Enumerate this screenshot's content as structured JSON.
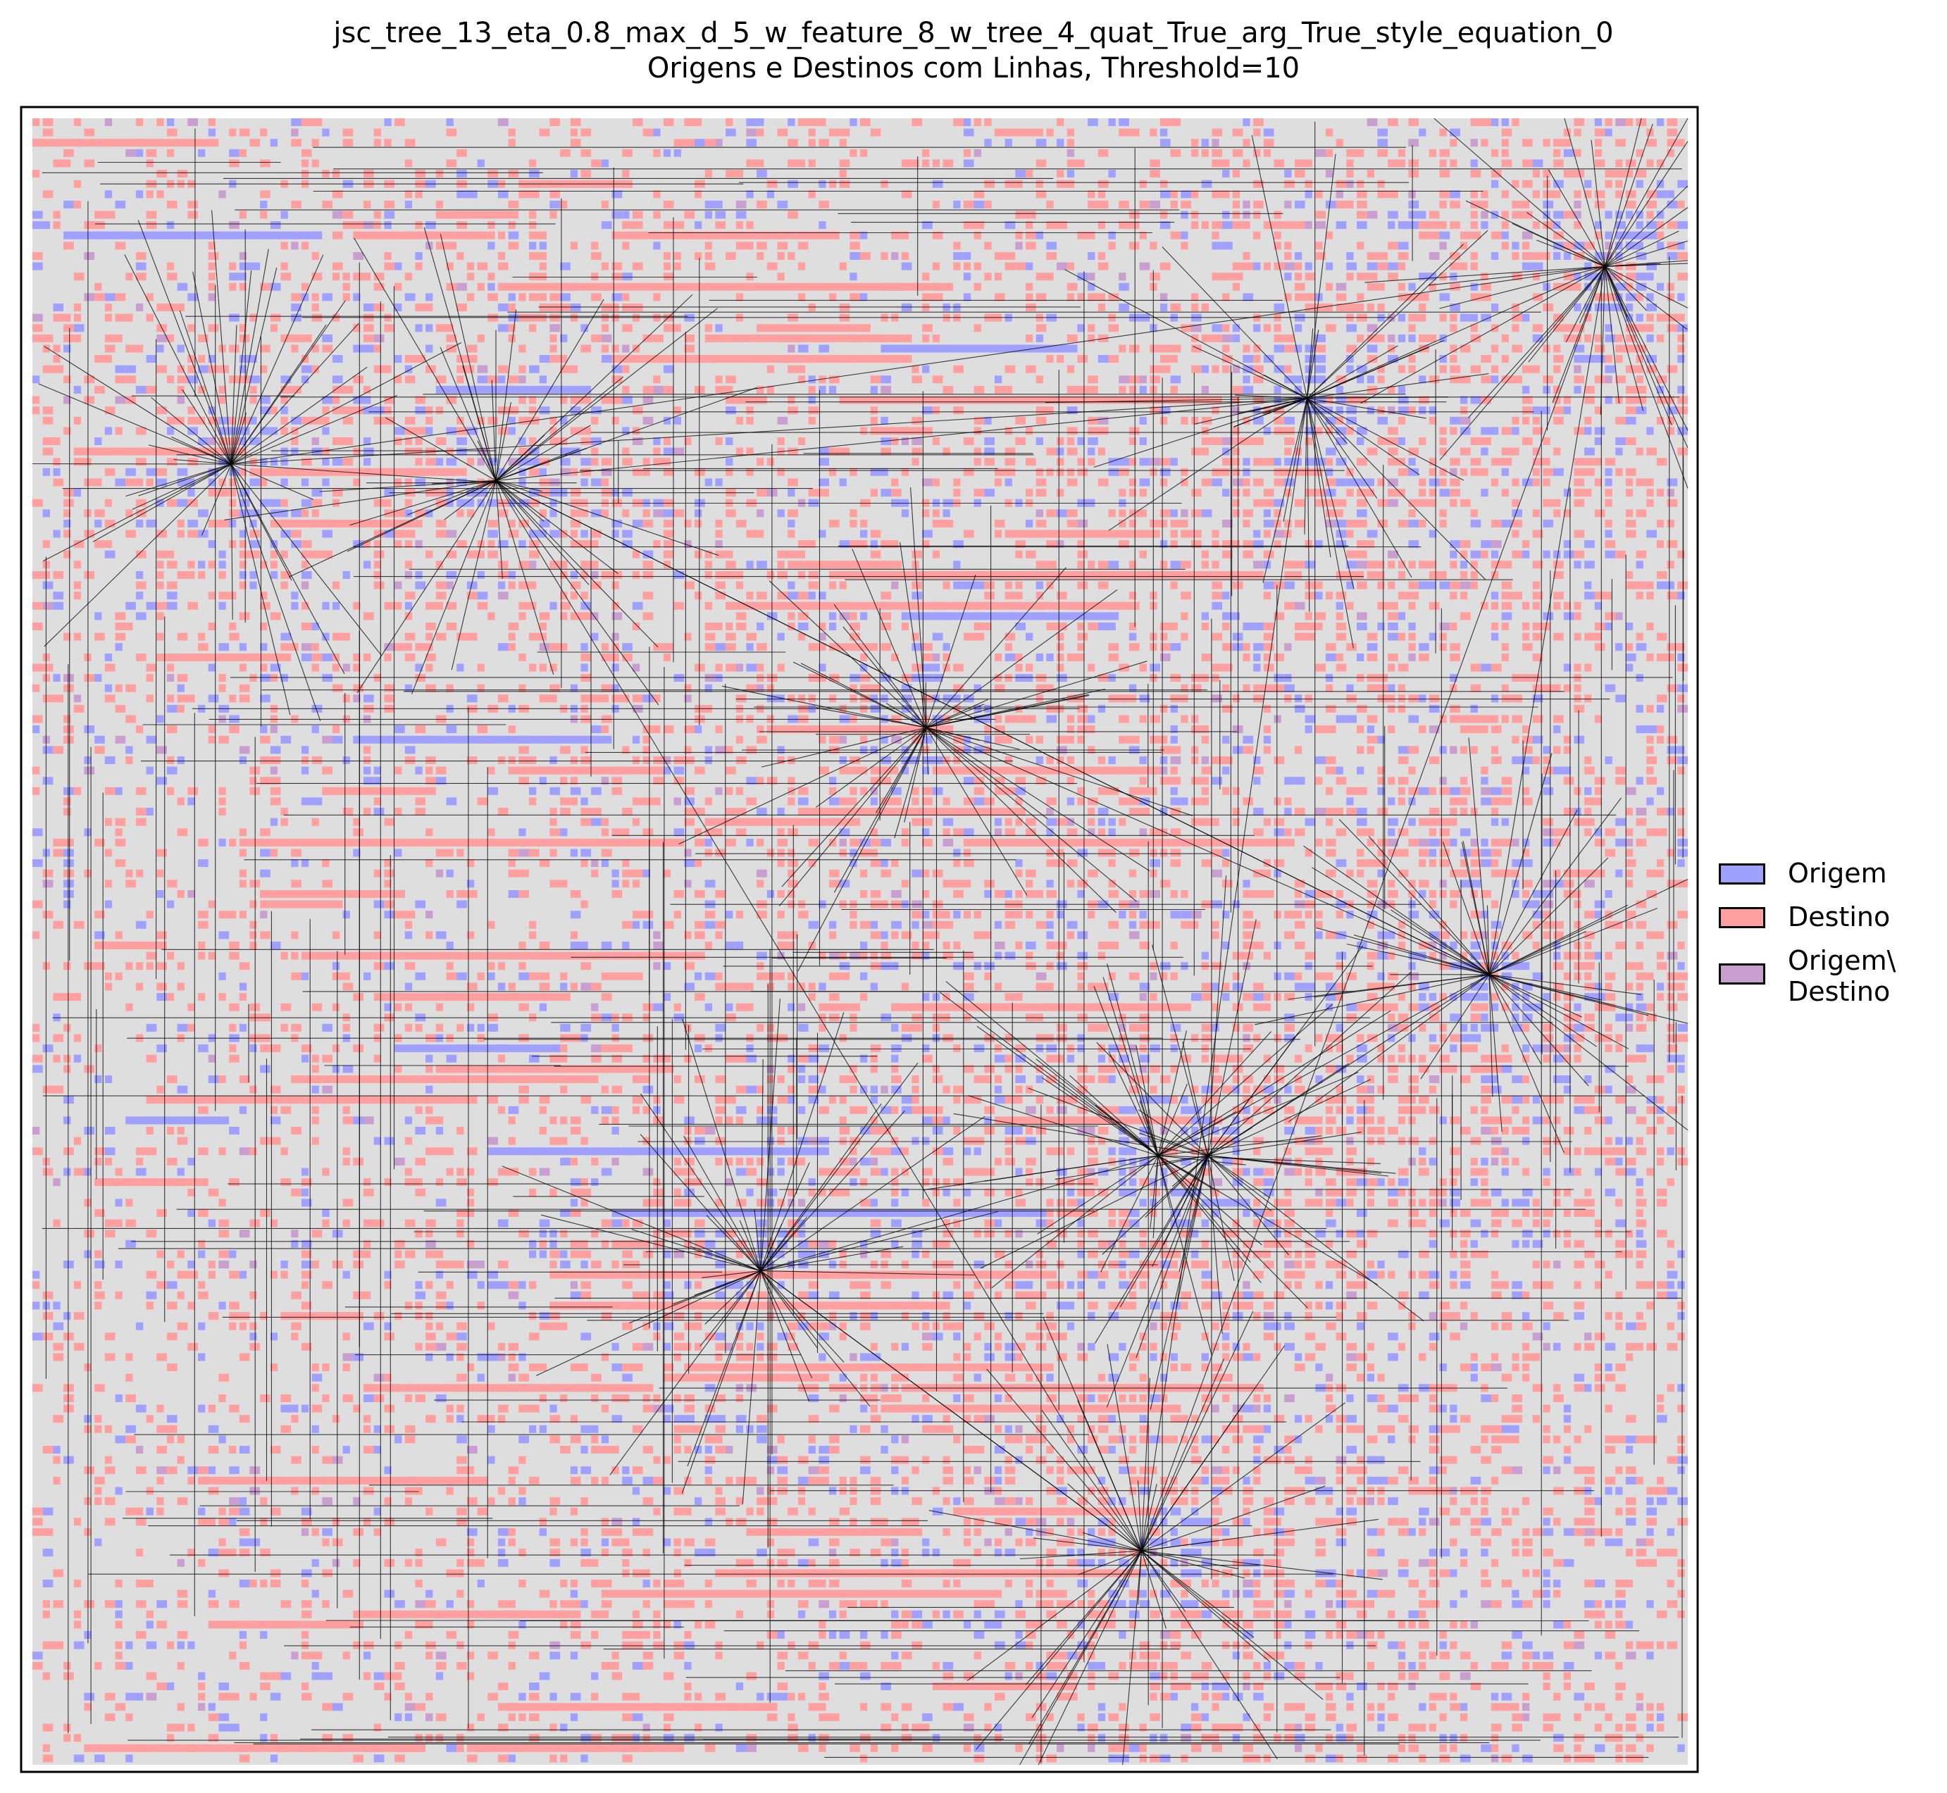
{
  "chart_data": {
    "type": "heatmap",
    "title": "jsc_tree_13_eta_0.8_max_d_5_w_feature_8_w_tree_4_quat_True_arg_True_style_equation_0",
    "subtitle": "Origens e Destinos com Linhas, Threshold=10",
    "xlabel": "",
    "ylabel": "",
    "grid": false,
    "axes_ticks": false,
    "legend_position": "right",
    "legend": [
      {
        "label": "Origem",
        "color": "#a0a0ff"
      },
      {
        "label": "Destino",
        "color": "#ff9f9f"
      },
      {
        "label": "Origem\\\nDestino",
        "color": "#c89fcf"
      }
    ],
    "background_cell_color": "#dedede",
    "line_color": "#000000",
    "hubs": [
      {
        "x": 0.12,
        "y": 0.79
      },
      {
        "x": 0.28,
        "y": 0.78
      },
      {
        "x": 0.54,
        "y": 0.63
      },
      {
        "x": 0.77,
        "y": 0.83
      },
      {
        "x": 0.95,
        "y": 0.91
      },
      {
        "x": 0.88,
        "y": 0.48
      },
      {
        "x": 0.68,
        "y": 0.37
      },
      {
        "x": 0.71,
        "y": 0.37
      },
      {
        "x": 0.44,
        "y": 0.3
      },
      {
        "x": 0.67,
        "y": 0.13
      }
    ]
  }
}
